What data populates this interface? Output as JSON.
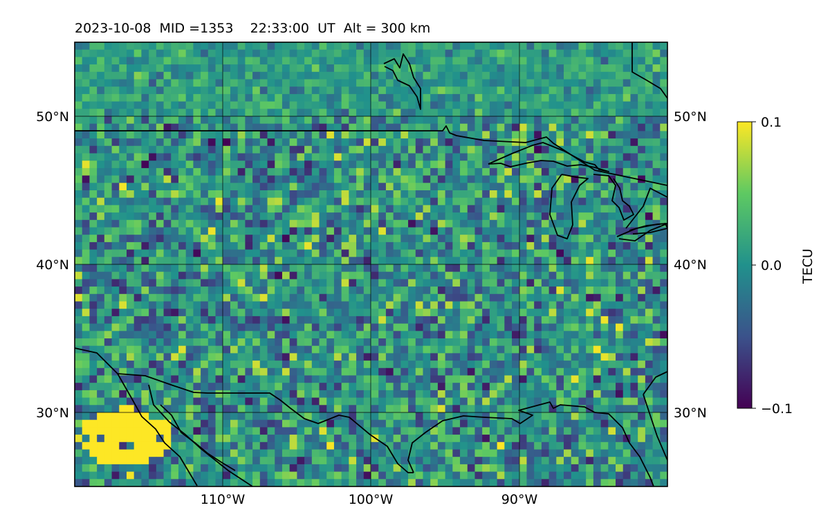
{
  "header": {
    "date": "2023-10-08",
    "mid": "MID =1353",
    "time": "22:33:00",
    "ut": "UT",
    "alt": "Alt = 300 km"
  },
  "map": {
    "lon_range": [
      -120,
      -80
    ],
    "lat_range": [
      25,
      55
    ],
    "grid_lon": [
      -110,
      -100,
      -90
    ],
    "grid_lat": [
      30,
      40,
      50
    ],
    "lon_ticks": [
      "110°W",
      "100°W",
      "90°W"
    ],
    "lat_ticks_left": [
      "50°N",
      "40°N",
      "30°N"
    ],
    "lat_ticks_right": [
      "50°N",
      "40°N",
      "30°N"
    ],
    "cell_deg": 0.5,
    "seed": 1353,
    "coastline_color": "#000000"
  },
  "colorbar": {
    "label": "TECU",
    "ticks": [
      "0.1",
      "0.0",
      "−0.1"
    ],
    "vmin": -0.1,
    "vmax": 0.1,
    "colormap": [
      "#440154",
      "#3b528b",
      "#21918c",
      "#5ec962",
      "#fde725"
    ]
  }
}
